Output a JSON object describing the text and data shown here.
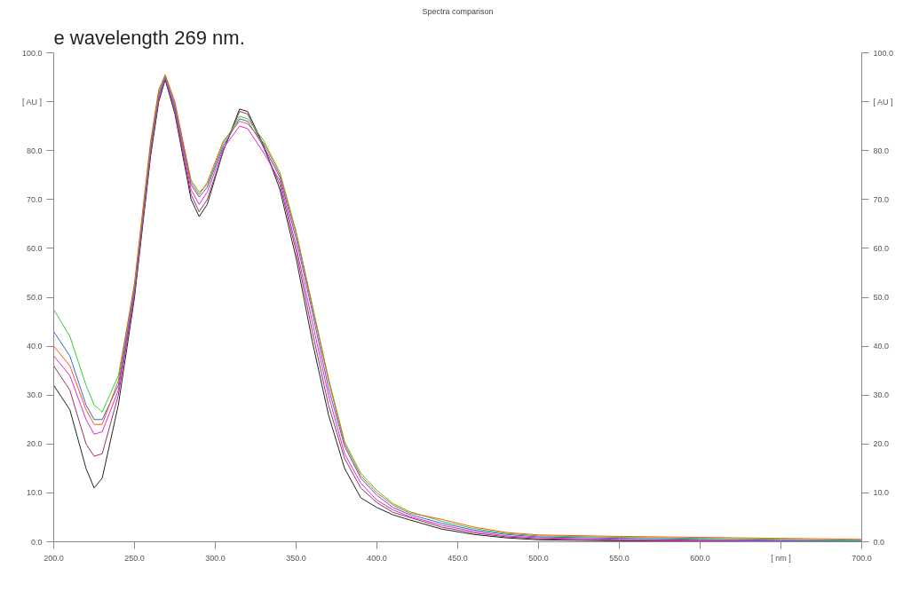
{
  "chart_data": {
    "type": "line",
    "title": "Spectra comparison",
    "annotations": [
      "e wavelength 269 nm."
    ],
    "x": [
      200,
      210,
      220,
      225,
      230,
      240,
      250,
      260,
      265,
      269,
      275,
      285,
      290,
      295,
      305,
      315,
      320,
      330,
      340,
      350,
      360,
      370,
      380,
      390,
      400,
      410,
      420,
      440,
      460,
      480,
      500,
      550,
      600,
      650,
      700
    ],
    "series": [
      {
        "color": "#222222",
        "values": [
          32,
          27,
          15,
          11,
          13,
          28,
          50,
          79,
          90,
          94.5,
          87.5,
          70,
          66.5,
          69,
          80,
          88.5,
          88,
          81,
          72,
          58,
          41,
          26,
          15,
          9,
          7,
          5.5,
          4.5,
          2.6,
          1.5,
          0.8,
          0.4,
          0.2,
          0.1,
          0,
          0
        ]
      },
      {
        "color": "#993366",
        "values": [
          36,
          31,
          20,
          17.5,
          18,
          30,
          50.6,
          79.6,
          90.5,
          94.7,
          88,
          71,
          67.5,
          70,
          80,
          88,
          87.5,
          80.5,
          73,
          59.5,
          43,
          28,
          17,
          11,
          8,
          6,
          5,
          3.0,
          1.8,
          1.0,
          0.6,
          0.3,
          0.2,
          0.1,
          0
        ]
      },
      {
        "color": "#ee22cc",
        "values": [
          38,
          34,
          25,
          22,
          22.5,
          31,
          51.2,
          80.2,
          91,
          94.9,
          88.5,
          72,
          69,
          71.5,
          80.5,
          85,
          84.5,
          79.5,
          73.8,
          60.5,
          45,
          30,
          18,
          12,
          8.5,
          6.5,
          5.2,
          3.4,
          2.1,
          1.2,
          0.8,
          0.5,
          0.3,
          0.2,
          0.1
        ]
      },
      {
        "color": "#3366dd",
        "values": [
          43,
          38,
          28,
          25,
          25,
          32,
          51.8,
          80.8,
          91.5,
          95.1,
          89,
          73,
          70.5,
          72.5,
          81,
          86.5,
          86,
          80.8,
          74.5,
          62,
          47,
          31.5,
          19.5,
          13,
          9.5,
          7,
          5.6,
          3.8,
          2.4,
          1.5,
          1.0,
          0.7,
          0.5,
          0.3,
          0.2
        ]
      },
      {
        "color": "#33cc33",
        "values": [
          47.5,
          42,
          32,
          28,
          26.5,
          34,
          52.4,
          81.4,
          92,
          95.3,
          89.5,
          74,
          71.5,
          73,
          81.5,
          87,
          86.5,
          82,
          75.5,
          63.5,
          48.5,
          33.5,
          20.5,
          14,
          10.5,
          7.8,
          6.2,
          4.2,
          2.7,
          1.7,
          1.2,
          0.9,
          0.7,
          0.5,
          0.3
        ]
      },
      {
        "color": "#ff5511",
        "values": [
          40,
          36,
          27,
          24,
          24,
          33,
          53,
          82,
          92.5,
          95.5,
          90,
          73.5,
          71,
          73.5,
          82,
          86,
          85.5,
          81.5,
          75,
          63,
          48,
          33,
          20,
          13.5,
          10,
          7.5,
          5.9,
          4.6,
          3.0,
          1.9,
          1.4,
          1.1,
          0.9,
          0.7,
          0.5
        ]
      }
    ],
    "xlim": [
      200,
      700
    ],
    "xticks": [
      {
        "value": 200,
        "label": "200.0"
      },
      {
        "value": 250,
        "label": "250.0"
      },
      {
        "value": 300,
        "label": "300.0"
      },
      {
        "value": 350,
        "label": "350.0"
      },
      {
        "value": 400,
        "label": "400.0"
      },
      {
        "value": 450,
        "label": "450.0"
      },
      {
        "value": 500,
        "label": "500.0"
      },
      {
        "value": 550,
        "label": "550.0"
      },
      {
        "value": 600,
        "label": "600.0"
      },
      {
        "value": 650,
        "label": "[ nm ]"
      },
      {
        "value": 700,
        "label": "700.0"
      }
    ],
    "ylim": [
      0,
      100
    ],
    "yticks": [
      {
        "value": 0,
        "label": "0.0"
      },
      {
        "value": 10,
        "label": "10.0"
      },
      {
        "value": 20,
        "label": "20.0"
      },
      {
        "value": 30,
        "label": "30.0"
      },
      {
        "value": 40,
        "label": "40.0"
      },
      {
        "value": 50,
        "label": "50.0"
      },
      {
        "value": 60,
        "label": "60.0"
      },
      {
        "value": 70,
        "label": "70.0"
      },
      {
        "value": 80,
        "label": "80.0"
      },
      {
        "value": 90,
        "label": "[ AU ]"
      },
      {
        "value": 100,
        "label": "100.0"
      }
    ],
    "y2lim": [
      0,
      100
    ],
    "y2ticks": [
      {
        "value": 0,
        "label": "0.0"
      },
      {
        "value": 10,
        "label": "10.0"
      },
      {
        "value": 20,
        "label": "20.0"
      },
      {
        "value": 30,
        "label": "30.0"
      },
      {
        "value": 40,
        "label": "40.0"
      },
      {
        "value": 50,
        "label": "50.0"
      },
      {
        "value": 60,
        "label": "60.0"
      },
      {
        "value": 70,
        "label": "70.0"
      },
      {
        "value": 80,
        "label": "80.0"
      },
      {
        "value": 90,
        "label": "[ AU ]"
      },
      {
        "value": 100,
        "label": "100.0"
      }
    ],
    "grid": false,
    "marker": "none",
    "line_style": "solid"
  }
}
